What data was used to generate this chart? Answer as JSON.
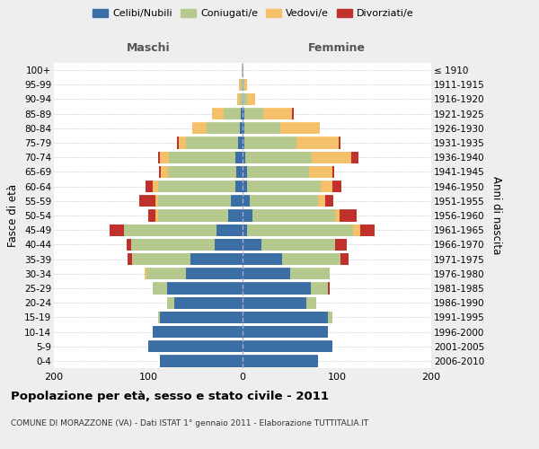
{
  "age_groups": [
    "0-4",
    "5-9",
    "10-14",
    "15-19",
    "20-24",
    "25-29",
    "30-34",
    "35-39",
    "40-44",
    "45-49",
    "50-54",
    "55-59",
    "60-64",
    "65-69",
    "70-74",
    "75-79",
    "80-84",
    "85-89",
    "90-94",
    "95-99",
    "100+"
  ],
  "birth_years": [
    "2006-2010",
    "2001-2005",
    "1996-2000",
    "1991-1995",
    "1986-1990",
    "1981-1985",
    "1976-1980",
    "1971-1975",
    "1966-1970",
    "1961-1965",
    "1956-1960",
    "1951-1955",
    "1946-1950",
    "1941-1945",
    "1936-1940",
    "1931-1935",
    "1926-1930",
    "1921-1925",
    "1916-1920",
    "1911-1915",
    "≤ 1910"
  ],
  "colors": {
    "celibi": "#3a6ea5",
    "coniugati": "#b5c98e",
    "vedovi": "#f5c06a",
    "divorziati": "#c0312b"
  },
  "male": {
    "celibi": [
      88,
      100,
      95,
      88,
      72,
      80,
      60,
      55,
      30,
      28,
      15,
      12,
      8,
      7,
      8,
      5,
      3,
      2,
      0,
      0,
      0
    ],
    "coniugati": [
      0,
      0,
      0,
      2,
      8,
      15,
      42,
      62,
      88,
      98,
      75,
      78,
      82,
      72,
      70,
      55,
      35,
      18,
      3,
      2,
      1
    ],
    "vedovi": [
      0,
      0,
      0,
      0,
      0,
      0,
      2,
      0,
      0,
      0,
      2,
      2,
      5,
      8,
      10,
      8,
      15,
      12,
      3,
      2,
      0
    ],
    "divorziati": [
      0,
      0,
      0,
      0,
      0,
      0,
      0,
      5,
      5,
      15,
      8,
      18,
      8,
      2,
      2,
      2,
      0,
      0,
      0,
      0,
      0
    ]
  },
  "female": {
    "nubili": [
      80,
      95,
      90,
      90,
      68,
      72,
      50,
      42,
      20,
      5,
      10,
      8,
      5,
      5,
      3,
      2,
      2,
      2,
      0,
      0,
      0
    ],
    "coniugate": [
      0,
      0,
      0,
      5,
      10,
      18,
      42,
      62,
      78,
      112,
      88,
      72,
      78,
      65,
      70,
      55,
      38,
      20,
      5,
      2,
      1
    ],
    "vedove": [
      0,
      0,
      0,
      0,
      0,
      0,
      0,
      0,
      0,
      8,
      5,
      8,
      12,
      25,
      42,
      45,
      42,
      30,
      8,
      3,
      0
    ],
    "divorziate": [
      0,
      0,
      0,
      0,
      0,
      2,
      0,
      8,
      12,
      15,
      18,
      8,
      10,
      2,
      8,
      2,
      0,
      2,
      0,
      0,
      0
    ]
  },
  "xlim": 200,
  "title": "Popolazione per età, sesso e stato civile - 2011",
  "subtitle": "COMUNE DI MORAZZONE (VA) - Dati ISTAT 1° gennaio 2011 - Elaborazione TUTTITALIA.IT",
  "xlabel_left": "Maschi",
  "xlabel_right": "Femmine",
  "ylabel_left": "Fasce di età",
  "ylabel_right": "Anni di nascita",
  "legend_labels": [
    "Celibi/Nubili",
    "Coniugati/e",
    "Vedovi/e",
    "Divorziati/e"
  ],
  "bg_color": "#eeeeee",
  "plot_bg": "#ffffff"
}
